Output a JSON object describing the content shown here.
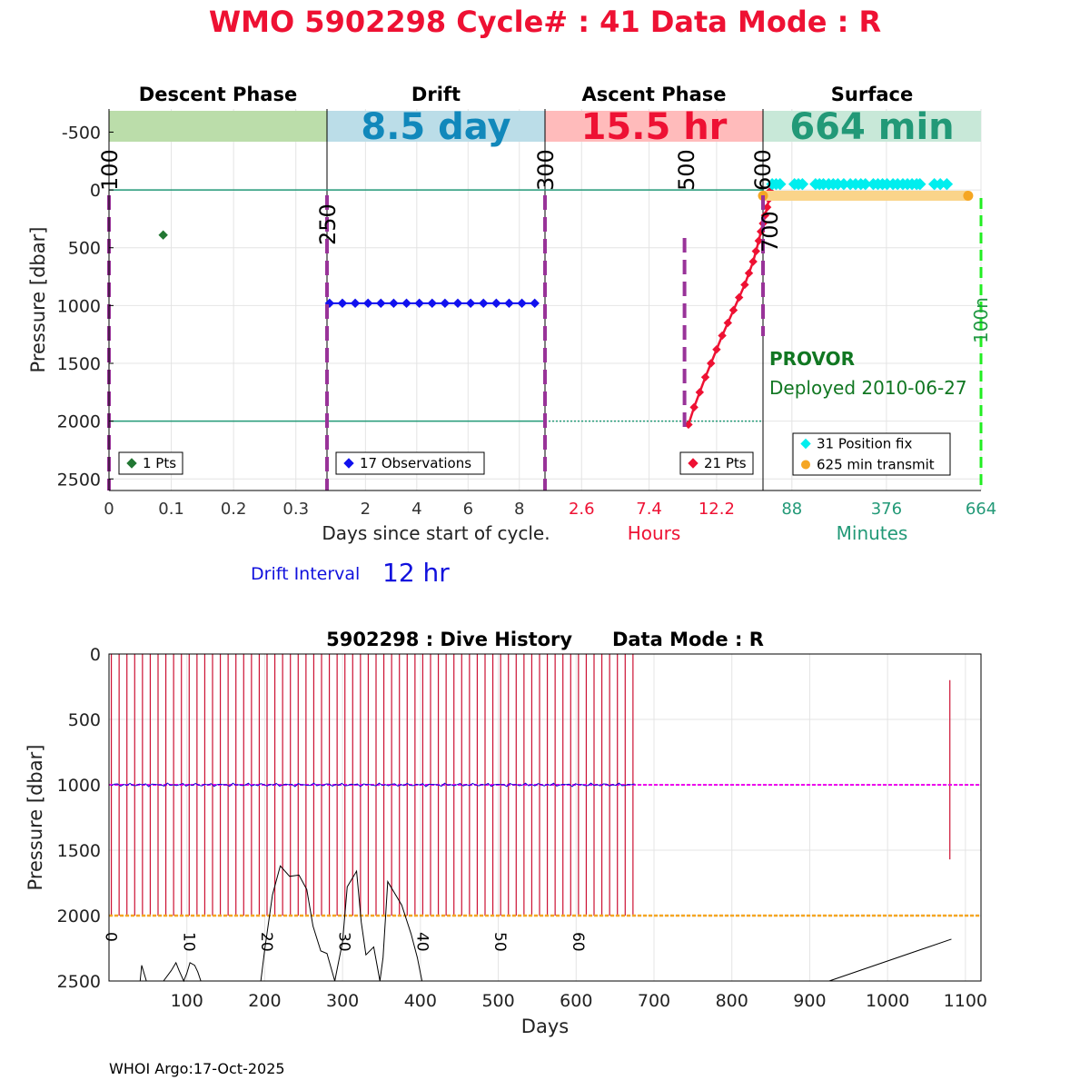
{
  "header": {
    "title": "WMO 5902298   Cycle# : 41   Data Mode : R",
    "title_color": "#ee1133"
  },
  "footer": {
    "text": "WHOI Argo:17-Oct-2025"
  },
  "chart_data": [
    {
      "type": "scatter",
      "ylabel": "Pressure [dbar]",
      "ylim": [
        2600,
        -700
      ],
      "yticks": [
        -500,
        0,
        500,
        1000,
        1500,
        2000,
        2500
      ],
      "grid": true,
      "reference_lines": [
        {
          "y": 0,
          "color": "#229977"
        },
        {
          "y": 2000,
          "color": "#229977"
        }
      ],
      "panels": [
        {
          "name": "Descent Phase",
          "band_color": "#bbddaa",
          "band_text": "",
          "xlim": [
            0,
            0.35
          ],
          "xticks": [
            0,
            0.1,
            0.2,
            0.3
          ],
          "xtick_labels": [
            "0",
            "0.1",
            "0.2",
            "0.3"
          ],
          "points": [
            {
              "x": 0.087,
              "y": 390
            }
          ],
          "point_color": "#227733",
          "legend": [
            {
              "label": "1 Pts",
              "color": "#227733",
              "marker": "diamond"
            }
          ],
          "line_markers": [
            {
              "x_frac": 0,
              "label": "100"
            }
          ]
        },
        {
          "name": "Drift",
          "band_color": "#bbdde8",
          "band_text": "8.5 day",
          "band_text_color": "#1188bb",
          "xlim": [
            0.5,
            9.0
          ],
          "xticks": [
            2,
            4,
            6,
            8
          ],
          "xtick_labels": [
            "2",
            "4",
            "6",
            "8"
          ],
          "line_y": 980,
          "points_x": [
            0.6,
            1.1,
            1.6,
            2.1,
            2.6,
            3.1,
            3.6,
            4.1,
            4.6,
            5.1,
            5.6,
            6.1,
            6.6,
            7.1,
            7.6,
            8.1,
            8.6
          ],
          "point_color": "#1111ee",
          "legend": [
            {
              "label": "17 Observations",
              "color": "#1111ee",
              "marker": "diamond"
            }
          ],
          "line_markers": [
            {
              "x_frac": 0,
              "label": "250"
            }
          ]
        },
        {
          "name": "Ascent Phase",
          "band_color": "#ffbbbb",
          "band_text": "15.5 hr",
          "band_text_color": "#ee1133",
          "xlim": [
            0,
            15.5
          ],
          "xticks": [
            2.6,
            7.4,
            12.2
          ],
          "xtick_labels": [
            "2.6",
            "7.4",
            "12.2"
          ],
          "xlabel": "Hours",
          "xlabel_color": "#ee1133",
          "tick_color": "#ee1133",
          "profile": [
            [
              10.2,
              2030
            ],
            [
              10.6,
              1880
            ],
            [
              11.0,
              1750
            ],
            [
              11.4,
              1620
            ],
            [
              11.8,
              1500
            ],
            [
              12.2,
              1380
            ],
            [
              12.6,
              1260
            ],
            [
              13.0,
              1150
            ],
            [
              13.4,
              1040
            ],
            [
              13.8,
              930
            ],
            [
              14.2,
              820
            ],
            [
              14.5,
              720
            ],
            [
              14.8,
              620
            ],
            [
              15.0,
              530
            ],
            [
              15.2,
              440
            ],
            [
              15.35,
              360
            ],
            [
              15.5,
              290
            ],
            [
              15.65,
              220
            ],
            [
              15.8,
              150
            ],
            [
              15.92,
              80
            ],
            [
              16.0,
              10
            ]
          ],
          "point_color": "#ee1133",
          "legend": [
            {
              "label": "21 Pts",
              "color": "#ee1133",
              "marker": "diamond"
            }
          ],
          "line_markers": [
            {
              "x_frac": 0,
              "label": "300"
            },
            {
              "x_frac": 0.65,
              "label": "500"
            },
            {
              "x_frac": 1,
              "label": "600"
            }
          ]
        },
        {
          "name": "Surface",
          "band_color": "#c8e8d8",
          "band_text": "664 min",
          "band_text_color": "#229977",
          "xlim": [
            0,
            664
          ],
          "xticks": [
            88,
            376,
            664
          ],
          "xtick_labels": [
            "88",
            "376",
            "664"
          ],
          "xlabel": "Minutes",
          "xlabel_color": "#229977",
          "tick_color": "#229977",
          "position_fix_y": -50,
          "position_fix_x": [
            28,
            40,
            52,
            96,
            108,
            120,
            160,
            172,
            184,
            200,
            214,
            228,
            246,
            266,
            282,
            298,
            312,
            336,
            350,
            364,
            378,
            396,
            410,
            426,
            440,
            454,
            468,
            478,
            522,
            540,
            560
          ],
          "transmit_y": 50,
          "transmit_x": [
            0,
            625
          ],
          "fix_color": "#00eeee",
          "transmit_color": "#f5a623",
          "transmit_band_color": "#fad48a",
          "legend": [
            {
              "label": "31 Position fix",
              "color": "#00eeee",
              "marker": "diamond"
            },
            {
              "label": "625 min transmit",
              "color": "#f5a623",
              "marker": "circle"
            }
          ],
          "line_markers": [
            {
              "x_frac": 0,
              "label": "700"
            },
            {
              "x_frac": 1,
              "label": "100n"
            }
          ],
          "annotation_model": "PROVOR",
          "annotation_deployed": "Deployed 2010-06-27",
          "annotation_color": "#117722"
        }
      ],
      "xlabel": "Days since start of cycle.",
      "drift_interval_label": "Drift Interval",
      "drift_interval_value": "12 hr",
      "drift_interval_color": "#1111dd"
    },
    {
      "type": "line",
      "title": "5902298 : Dive History      Data Mode : R",
      "xlabel": "Days",
      "ylabel": "Pressure [dbar]",
      "xlim": [
        0,
        1120
      ],
      "ylim": [
        2500,
        0
      ],
      "xticks": [
        100,
        200,
        300,
        400,
        500,
        600,
        700,
        800,
        900,
        1000,
        1100
      ],
      "yticks": [
        0,
        500,
        1000,
        1500,
        2000,
        2500
      ],
      "grid": true,
      "profile_days": [
        3,
        13,
        23,
        33,
        43,
        53,
        63,
        73,
        83,
        93,
        103,
        113,
        123,
        133,
        143,
        153,
        163,
        173,
        183,
        193,
        203,
        213,
        223,
        233,
        243,
        253,
        263,
        273,
        283,
        293,
        303,
        313,
        323,
        333,
        343,
        353,
        363,
        373,
        383,
        393,
        403,
        413,
        423,
        433,
        443,
        453,
        463,
        473,
        483,
        493,
        503,
        513,
        523,
        533,
        543,
        553,
        563,
        573,
        583,
        593,
        603,
        613,
        623,
        633,
        643,
        653,
        663,
        673
      ],
      "profile_top": 0,
      "profile_bottom": 2000,
      "last_profile": {
        "day": 1080,
        "top": 200,
        "bottom": 1570
      },
      "profile_color": "#cc1133",
      "drift_level": 1000,
      "drift_color": "#ee00ee",
      "drift_obs_color": "#1111cc",
      "park_level": 2000,
      "park_color": "#f5a623",
      "cycle_labels": [
        {
          "day": 3,
          "label": "0"
        },
        {
          "day": 103,
          "label": "10"
        },
        {
          "day": 203,
          "label": "20"
        },
        {
          "day": 303,
          "label": "30"
        },
        {
          "day": 403,
          "label": "40"
        },
        {
          "day": 503,
          "label": "50"
        },
        {
          "day": 603,
          "label": "60"
        }
      ],
      "black_trace": [
        [
          40,
          2500
        ],
        [
          42,
          2380
        ],
        [
          48,
          2500
        ],
        [
          70,
          2500
        ],
        [
          80,
          2420
        ],
        [
          86,
          2360
        ],
        [
          90,
          2420
        ],
        [
          96,
          2500
        ],
        [
          100,
          2440
        ],
        [
          104,
          2360
        ],
        [
          110,
          2380
        ],
        [
          114,
          2430
        ],
        [
          118,
          2500
        ],
        [
          195,
          2500
        ],
        [
          200,
          2260
        ],
        [
          210,
          1840
        ],
        [
          220,
          1620
        ],
        [
          232,
          1700
        ],
        [
          244,
          1690
        ],
        [
          254,
          1800
        ],
        [
          262,
          2080
        ],
        [
          272,
          2270
        ],
        [
          280,
          2290
        ],
        [
          290,
          2500
        ],
        [
          300,
          2200
        ],
        [
          306,
          1780
        ],
        [
          318,
          1660
        ],
        [
          324,
          2050
        ],
        [
          330,
          2300
        ],
        [
          340,
          2240
        ],
        [
          348,
          2500
        ],
        [
          352,
          2320
        ],
        [
          358,
          1740
        ],
        [
          376,
          1920
        ],
        [
          388,
          2140
        ],
        [
          396,
          2320
        ],
        [
          402,
          2500
        ]
      ],
      "black_trace_2": [
        [
          925,
          2500
        ],
        [
          1082,
          2180
        ]
      ]
    }
  ]
}
